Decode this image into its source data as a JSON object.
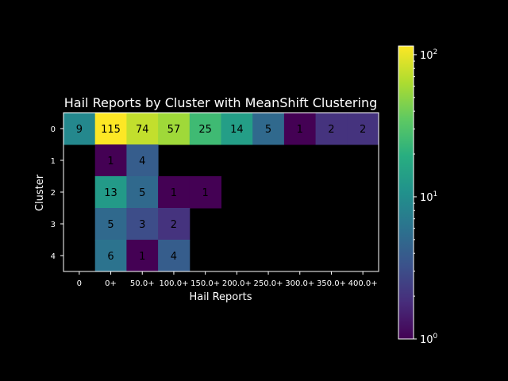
{
  "chart_data": {
    "type": "heatmap",
    "title": "Hail Reports by Cluster with MeanShift Clustering",
    "xlabel": "Hail Reports",
    "ylabel": "Cluster",
    "x_categories": [
      "0",
      "0+",
      "50.0+",
      "100.0+",
      "150.0+",
      "200.0+",
      "250.0+",
      "300.0+",
      "350.0+",
      "400.0+"
    ],
    "y_categories": [
      "0",
      "1",
      "2",
      "3",
      "4"
    ],
    "values": [
      [
        9,
        115,
        74,
        57,
        25,
        14,
        5,
        1,
        2,
        2
      ],
      [
        null,
        1,
        4,
        null,
        null,
        null,
        null,
        null,
        null,
        null
      ],
      [
        null,
        13,
        5,
        1,
        1,
        null,
        null,
        null,
        null,
        null
      ],
      [
        null,
        5,
        3,
        2,
        null,
        null,
        null,
        null,
        null,
        null
      ],
      [
        null,
        6,
        1,
        4,
        null,
        null,
        null,
        null,
        null,
        null
      ]
    ],
    "colorscale": "viridis",
    "color_scale_type": "log",
    "color_range": [
      1,
      115
    ],
    "colorbar": {
      "ticks": [
        {
          "base": "10",
          "exp": "0",
          "value": 1
        },
        {
          "base": "10",
          "exp": "1",
          "value": 10
        },
        {
          "base": "10",
          "exp": "2",
          "value": 100
        }
      ]
    },
    "background": "#000000",
    "grid": false
  }
}
